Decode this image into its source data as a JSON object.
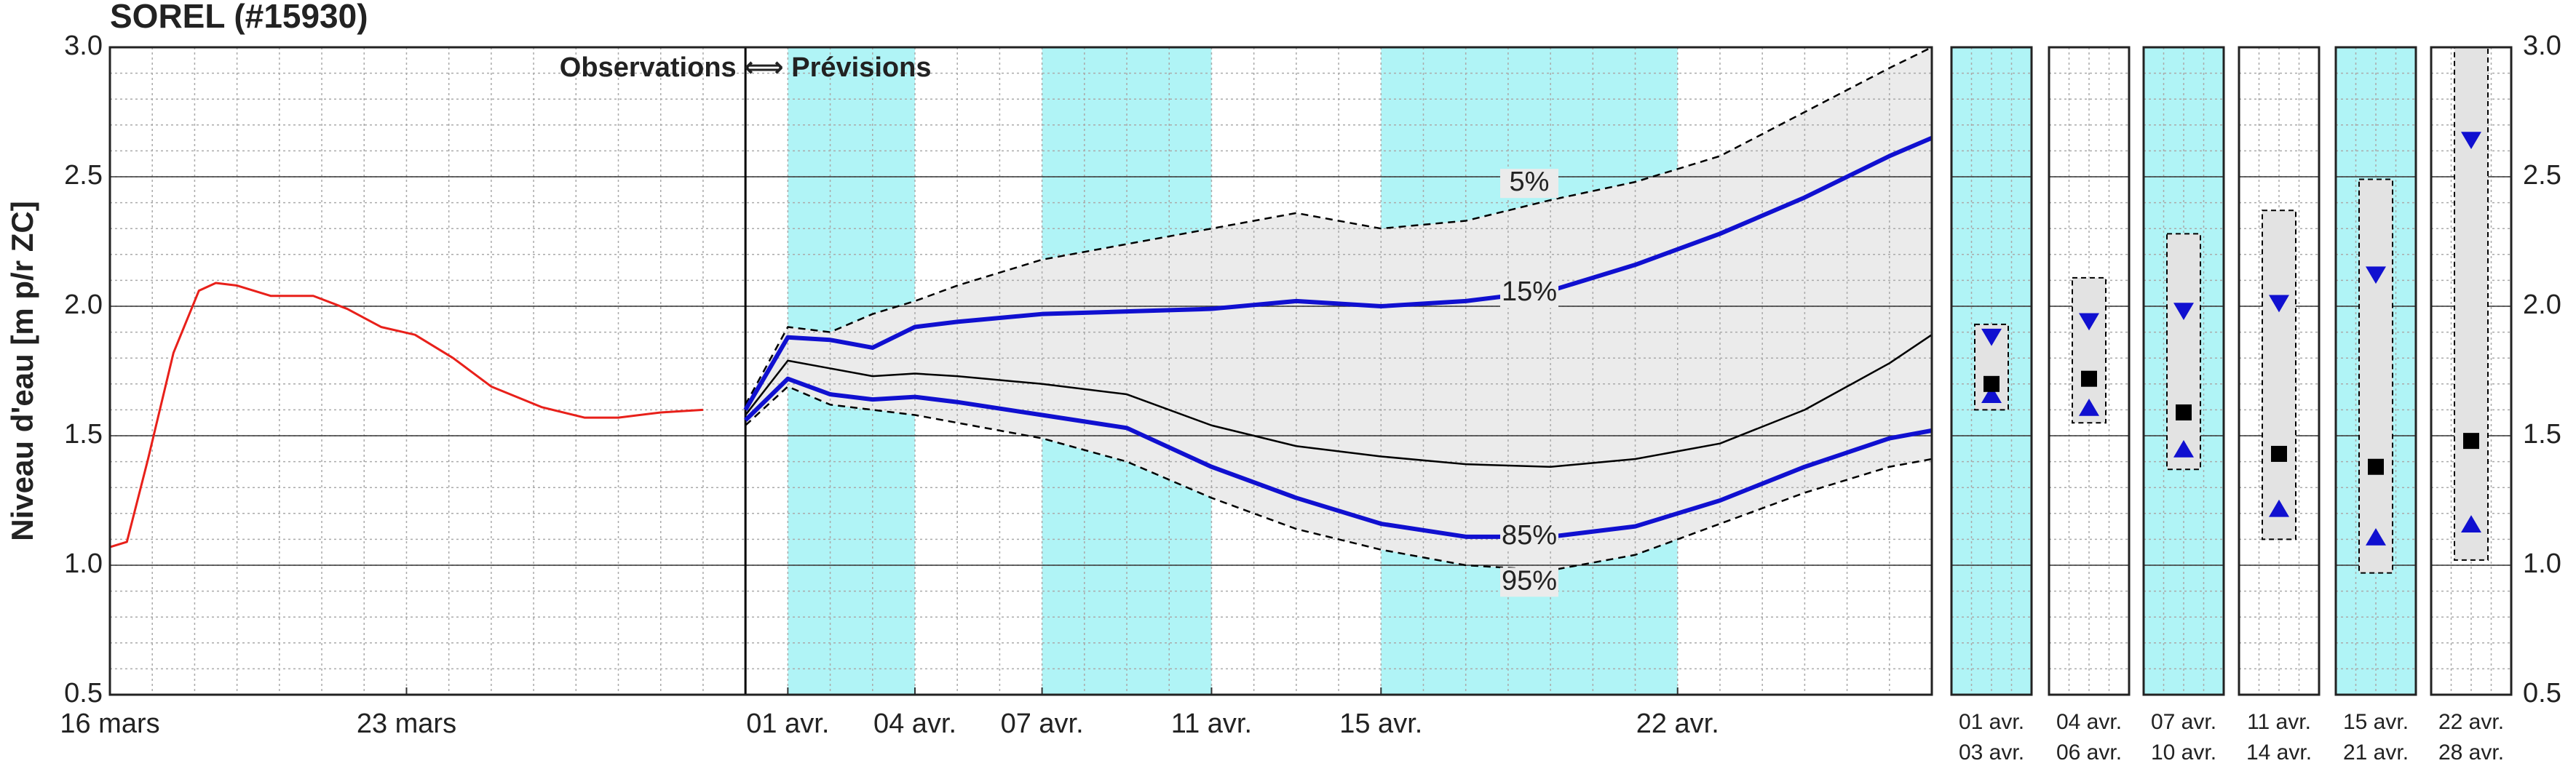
{
  "chart_data": [
    {
      "type": "line",
      "title": "SOREL (#15930)",
      "y_label": "Niveau d'eau [m p/r ZC]",
      "annotation": "Observations ⟺ Prévisions",
      "divider_x": 15,
      "xlim": [
        0,
        43
      ],
      "ylim": [
        0.5,
        3.0
      ],
      "xticks": [
        {
          "value": 0,
          "label": "16 mars"
        },
        {
          "value": 7,
          "label": "23 mars"
        },
        {
          "value": 16,
          "label": "01 avr."
        },
        {
          "value": 19,
          "label": "04 avr."
        },
        {
          "value": 22,
          "label": "07 avr."
        },
        {
          "value": 26,
          "label": "11 avr."
        },
        {
          "value": 30,
          "label": "15 avr."
        },
        {
          "value": 37,
          "label": "22 avr."
        }
      ],
      "yticks": [
        {
          "value": 0.5,
          "label": "0.5"
        },
        {
          "value": 1.0,
          "label": "1.0"
        },
        {
          "value": 1.5,
          "label": "1.5"
        },
        {
          "value": 2.0,
          "label": "2.0"
        },
        {
          "value": 2.5,
          "label": "2.5"
        },
        {
          "value": 3.0,
          "label": "3.0"
        }
      ],
      "grid": true,
      "highlight_spans": [
        [
          16,
          19
        ],
        [
          22,
          26
        ],
        [
          30,
          37
        ]
      ],
      "highlight_color": "#b0f4f6",
      "band_color": "#ebebeb",
      "observed": {
        "color": "#e8201a",
        "x": [
          0,
          0.4,
          0.9,
          1.5,
          2.1,
          2.5,
          3.0,
          3.8,
          4.8,
          5.6,
          6.4,
          7.2,
          8.1,
          9.0,
          10.2,
          11.2,
          12.0,
          13.0,
          14.0
        ],
        "values": [
          1.07,
          1.09,
          1.41,
          1.82,
          2.06,
          2.09,
          2.08,
          2.04,
          2.04,
          1.99,
          1.92,
          1.89,
          1.8,
          1.69,
          1.61,
          1.57,
          1.57,
          1.59,
          1.6
        ]
      },
      "series": [
        {
          "name": "5%",
          "color": "#000000",
          "style": "dashed",
          "x": [
            15,
            16,
            17,
            18,
            19,
            20,
            22,
            24,
            26,
            28,
            30,
            32,
            34,
            36,
            38,
            40,
            42,
            43
          ],
          "values": [
            1.62,
            1.92,
            1.9,
            1.97,
            2.02,
            2.08,
            2.18,
            2.24,
            2.3,
            2.36,
            2.3,
            2.33,
            2.41,
            2.48,
            2.58,
            2.75,
            2.92,
            3.0
          ]
        },
        {
          "name": "15%",
          "color": "#1010d0",
          "style": "bold",
          "x": [
            15,
            16,
            17,
            18,
            19,
            20,
            22,
            24,
            26,
            28,
            30,
            32,
            34,
            36,
            38,
            40,
            42,
            43
          ],
          "values": [
            1.6,
            1.88,
            1.87,
            1.84,
            1.92,
            1.94,
            1.97,
            1.98,
            1.99,
            2.02,
            2.0,
            2.02,
            2.06,
            2.16,
            2.28,
            2.42,
            2.58,
            2.65
          ]
        },
        {
          "color": "#000000",
          "style": "thin",
          "x": [
            15,
            16,
            17,
            18,
            19,
            20,
            22,
            24,
            26,
            28,
            30,
            32,
            34,
            36,
            38,
            40,
            42,
            43
          ],
          "values": [
            1.58,
            1.79,
            1.76,
            1.73,
            1.74,
            1.73,
            1.7,
            1.66,
            1.54,
            1.46,
            1.42,
            1.39,
            1.38,
            1.41,
            1.47,
            1.6,
            1.78,
            1.89
          ]
        },
        {
          "name": "85%",
          "color": "#1010d0",
          "style": "bold",
          "x": [
            15,
            16,
            17,
            18,
            19,
            20,
            22,
            24,
            26,
            28,
            30,
            32,
            34,
            36,
            38,
            40,
            42,
            43
          ],
          "values": [
            1.56,
            1.72,
            1.66,
            1.64,
            1.65,
            1.63,
            1.58,
            1.53,
            1.38,
            1.26,
            1.16,
            1.11,
            1.11,
            1.15,
            1.25,
            1.38,
            1.49,
            1.52
          ]
        },
        {
          "name": "95%",
          "color": "#000000",
          "style": "dashed",
          "x": [
            15,
            16,
            17,
            18,
            19,
            20,
            22,
            24,
            26,
            28,
            30,
            32,
            34,
            36,
            38,
            40,
            42,
            43
          ],
          "values": [
            1.54,
            1.69,
            1.62,
            1.6,
            1.58,
            1.55,
            1.49,
            1.4,
            1.26,
            1.14,
            1.06,
            1.0,
            0.98,
            1.04,
            1.16,
            1.28,
            1.38,
            1.41
          ]
        }
      ]
    },
    {
      "type": "range-panels",
      "ylim": [
        0.5,
        3.0
      ],
      "yticks": [
        {
          "value": 0.5,
          "label": "0.5"
        },
        {
          "value": 1.0,
          "label": "1.0"
        },
        {
          "value": 1.5,
          "label": "1.5"
        },
        {
          "value": 2.0,
          "label": "2.0"
        },
        {
          "value": 2.5,
          "label": "2.5"
        },
        {
          "value": 3.0,
          "label": "3.0"
        }
      ],
      "starts": [
        "01 avr.",
        "04 avr.",
        "07 avr.",
        "11 avr.",
        "15 avr.",
        "22 avr."
      ],
      "ends": [
        "03 avr.",
        "06 avr.",
        "10 avr.",
        "14 avr.",
        "21 avr.",
        "28 avr."
      ],
      "shaded": [
        true,
        false,
        true,
        false,
        true,
        false
      ],
      "highlight_color": "#b0f4f6",
      "low": [
        1.6,
        1.55,
        1.37,
        1.1,
        0.97,
        1.02
      ],
      "high": [
        1.93,
        2.11,
        2.28,
        2.37,
        2.49,
        3.0
      ],
      "q15": [
        1.88,
        1.94,
        1.98,
        2.01,
        2.12,
        2.64
      ],
      "median": [
        1.7,
        1.72,
        1.59,
        1.43,
        1.38,
        1.48
      ],
      "q85": [
        1.66,
        1.61,
        1.45,
        1.22,
        1.11,
        1.16
      ],
      "marker_color": "#1010d0"
    }
  ]
}
